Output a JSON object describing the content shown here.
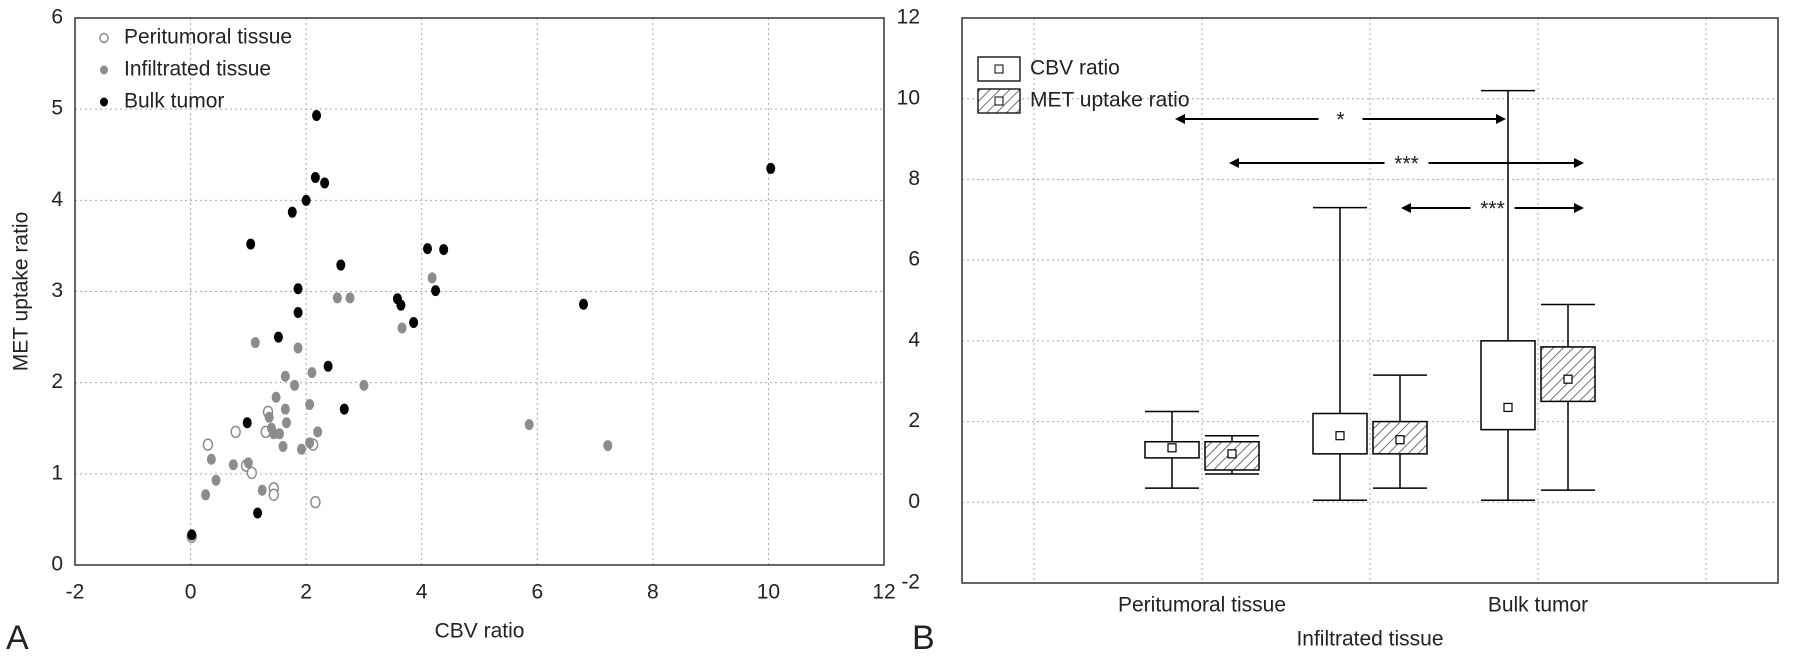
{
  "chart_data": [
    {
      "type": "scatter",
      "panel_label": "A",
      "xlabel": "CBV ratio",
      "ylabel": "MET uptake ratio",
      "xlim": [
        -2,
        12
      ],
      "xticks": [
        -2,
        0,
        2,
        4,
        6,
        8,
        10,
        12
      ],
      "ylim": [
        0,
        6
      ],
      "yticks": [
        0,
        1,
        2,
        3,
        4,
        5,
        6
      ],
      "grid": true,
      "legend": "upper left",
      "series": [
        {
          "name": "Peritumoral tissue",
          "color": "#8a8a8a",
          "marker": "open",
          "x": [
            0.3,
            0.78,
            0.96,
            1.06,
            1.34,
            1.44,
            1.44,
            2.12,
            2.16,
            1.3,
            0.02
          ],
          "values": [
            1.32,
            1.46,
            1.09,
            1.01,
            1.68,
            0.84,
            0.77,
            1.32,
            0.69,
            1.46,
            0.31
          ]
        },
        {
          "name": "Infiltrated tissue",
          "color": "#8c8c8c",
          "marker": "filled",
          "x": [
            0.26,
            0.36,
            0.44,
            0.74,
            1.0,
            1.12,
            1.24,
            1.36,
            1.4,
            1.44,
            1.48,
            1.54,
            1.6,
            1.64,
            1.66,
            1.64,
            1.8,
            1.86,
            1.92,
            2.06,
            2.1,
            2.2,
            2.54,
            2.76,
            3.0,
            3.66,
            4.18,
            5.86,
            7.22,
            2.06
          ],
          "values": [
            0.77,
            1.16,
            0.93,
            1.1,
            1.12,
            2.44,
            0.82,
            1.62,
            1.5,
            1.44,
            1.84,
            1.44,
            1.3,
            1.71,
            1.56,
            2.07,
            1.97,
            2.38,
            1.27,
            1.76,
            2.11,
            1.46,
            2.93,
            2.93,
            1.97,
            2.6,
            3.15,
            1.54,
            1.31,
            1.34
          ]
        },
        {
          "name": "Bulk tumor",
          "color": "#000000",
          "marker": "filled",
          "x": [
            0.02,
            1.04,
            0.98,
            1.16,
            1.52,
            1.76,
            1.86,
            1.86,
            2.0,
            2.18,
            2.16,
            2.32,
            2.38,
            2.6,
            2.66,
            3.58,
            3.64,
            3.86,
            4.1,
            4.24,
            4.38,
            6.8,
            10.04
          ],
          "values": [
            0.33,
            3.52,
            1.56,
            0.57,
            2.5,
            3.87,
            3.03,
            2.77,
            4.0,
            4.93,
            4.25,
            4.19,
            2.18,
            3.29,
            1.71,
            2.92,
            2.85,
            2.66,
            3.47,
            3.01,
            3.46,
            2.86,
            4.35
          ]
        }
      ]
    },
    {
      "type": "box",
      "panel_label": "B",
      "categories": [
        "Peritumoral tissue",
        "Infiltrated tissue",
        "Bulk tumor"
      ],
      "ylim": [
        -2,
        12
      ],
      "yticks": [
        -2,
        0,
        2,
        4,
        6,
        8,
        10,
        12
      ],
      "grid": true,
      "legend": "upper left",
      "series": [
        {
          "name": "CBV ratio",
          "color": "#ffffff",
          "hatch": false,
          "whisker_low": [
            0.35,
            0.05,
            0.05
          ],
          "box_low": [
            1.1,
            1.2,
            1.8
          ],
          "center": [
            1.35,
            1.65,
            2.35
          ],
          "box_high": [
            1.5,
            2.2,
            4.0
          ],
          "whisker_high": [
            2.25,
            7.3,
            10.2
          ]
        },
        {
          "name": "MET uptake ratio",
          "color": "#ffffff",
          "hatch": true,
          "whisker_low": [
            0.7,
            0.35,
            0.3
          ],
          "box_low": [
            0.8,
            1.2,
            2.5
          ],
          "center": [
            1.2,
            1.55,
            3.05
          ],
          "box_high": [
            1.5,
            2.0,
            3.85
          ],
          "whisker_high": [
            1.65,
            3.15,
            4.9
          ]
        }
      ],
      "annotations": [
        "*",
        "***",
        "***"
      ]
    }
  ]
}
